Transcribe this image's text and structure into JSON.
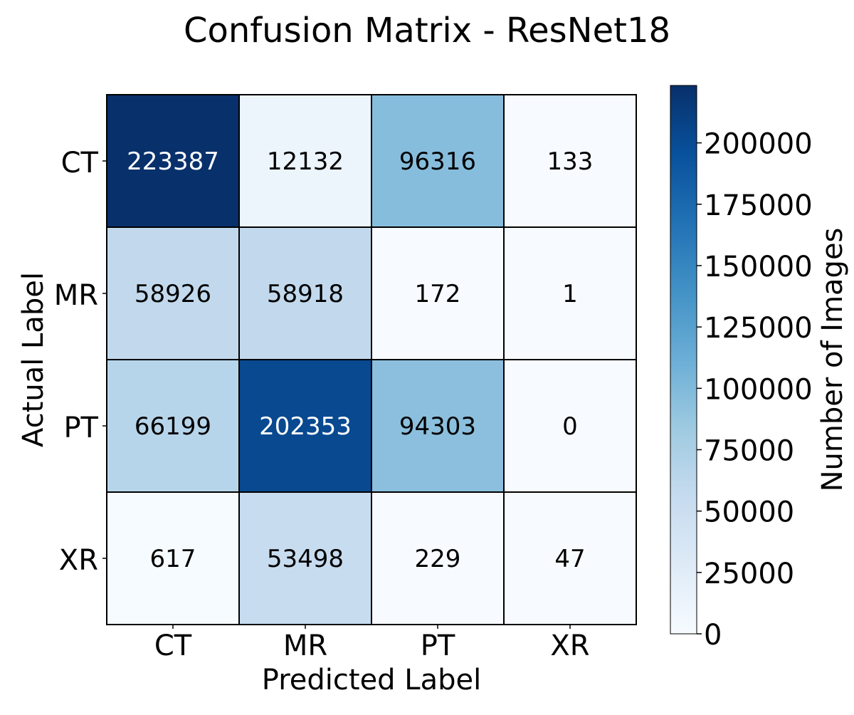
{
  "chart_data": {
    "type": "heatmap",
    "title": "Confusion Matrix - ResNet18",
    "xlabel": "Predicted Label",
    "ylabel": "Actual Label",
    "x_categories": [
      "CT",
      "MR",
      "PT",
      "XR"
    ],
    "y_categories": [
      "CT",
      "MR",
      "PT",
      "XR"
    ],
    "values": [
      [
        223387,
        12132,
        96316,
        133
      ],
      [
        58926,
        58918,
        172,
        1
      ],
      [
        66199,
        202353,
        94303,
        0
      ],
      [
        617,
        53498,
        229,
        47
      ]
    ],
    "colormap": "Blues",
    "value_range": [
      0,
      223387
    ],
    "colorbar": {
      "label": "Number of Images",
      "ticks": [
        0,
        25000,
        50000,
        75000,
        100000,
        125000,
        150000,
        175000,
        200000
      ],
      "tick_labels": [
        "0",
        "25000",
        "50000",
        "75000",
        "100000",
        "125000",
        "150000",
        "175000",
        "200000"
      ]
    },
    "colors": {
      "light_text": "#ffffff",
      "dark_text": "#000000",
      "cell_border": "#000000"
    }
  }
}
